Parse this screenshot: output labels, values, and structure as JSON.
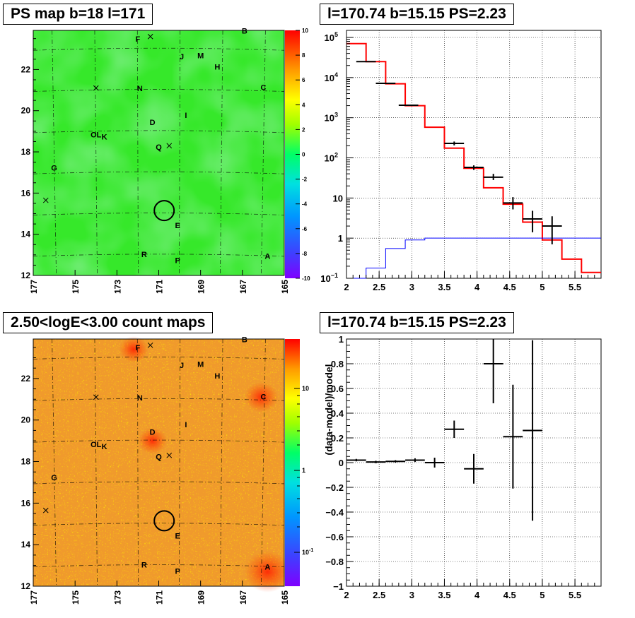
{
  "titles": {
    "tl": "PS map b=18 l=171",
    "tr": "l=170.74 b=15.15 PS=2.23",
    "bl": "2.50<logE<3.00 count maps",
    "br": "l=170.74 b=15.15 PS=2.23"
  },
  "chart_data": [
    {
      "type": "heatmap",
      "id": "ps-map",
      "title": "PS map b=18 l=171",
      "xlim": [
        177,
        165
      ],
      "ylim": [
        12,
        23.9
      ],
      "x_ticks": [
        "177",
        "175",
        "173",
        "171",
        "169",
        "167",
        "165"
      ],
      "y_ticks": [
        "12",
        "14",
        "16",
        "18",
        "20",
        "22"
      ],
      "colorbar": {
        "range": [
          -10,
          10
        ],
        "ticks": [
          "10",
          "8",
          "6",
          "4",
          "2",
          "0",
          "-2",
          "-4",
          "-6",
          "-8",
          "-10"
        ]
      },
      "grid": true,
      "labels": [
        {
          "text": "F",
          "l": 172.0,
          "b": 23.35
        },
        {
          "text": "B",
          "l": 166.9,
          "b": 23.75
        },
        {
          "text": "J",
          "l": 169.9,
          "b": 22.5
        },
        {
          "text": "M",
          "l": 169.0,
          "b": 22.55
        },
        {
          "text": "H",
          "l": 168.2,
          "b": 22.0
        },
        {
          "text": "C",
          "l": 166.0,
          "b": 21.0
        },
        {
          "text": "N",
          "l": 171.9,
          "b": 20.95
        },
        {
          "text": "I",
          "l": 169.7,
          "b": 19.65
        },
        {
          "text": "D",
          "l": 171.3,
          "b": 19.3
        },
        {
          "text": "OL",
          "l": 174.0,
          "b": 18.7
        },
        {
          "text": "K",
          "l": 173.6,
          "b": 18.6
        },
        {
          "text": "Q",
          "l": 171.0,
          "b": 18.1
        },
        {
          "text": "G",
          "l": 176.0,
          "b": 17.1
        },
        {
          "text": "E",
          "l": 170.1,
          "b": 14.3
        },
        {
          "text": "R",
          "l": 171.7,
          "b": 12.9
        },
        {
          "text": "P",
          "l": 170.1,
          "b": 12.6
        },
        {
          "text": "A",
          "l": 165.8,
          "b": 12.8
        }
      ],
      "crosses": [
        {
          "l": 171.4,
          "b": 23.6
        },
        {
          "l": 174.0,
          "b": 21.1
        },
        {
          "l": 170.5,
          "b": 18.3
        },
        {
          "l": 176.4,
          "b": 15.65
        }
      ],
      "circle": {
        "l": 170.74,
        "b": 15.15,
        "r_deg": 0.45
      }
    },
    {
      "type": "line",
      "id": "spectrum",
      "title": "l=170.74 b=15.15 PS=2.23",
      "xlim": [
        2,
        5.9
      ],
      "ylim": [
        0.1,
        150000
      ],
      "yscale": "log",
      "x_ticks": [
        "2",
        "2.5",
        "3",
        "3.5",
        "4",
        "4.5",
        "5",
        "5.5"
      ],
      "y_ticks": [
        {
          "v": 100000,
          "base": "10",
          "exp": "5"
        },
        {
          "v": 10000,
          "base": "10",
          "exp": "4"
        },
        {
          "v": 1000,
          "base": "10",
          "exp": "3"
        },
        {
          "v": 100,
          "base": "10",
          "exp": "2"
        },
        {
          "v": 10,
          "base": "10",
          "exp": ""
        },
        {
          "v": 1,
          "base": "1",
          "exp": ""
        },
        {
          "v": 0.1,
          "base": "10",
          "exp": "−1"
        }
      ],
      "grid": true,
      "series": [
        {
          "color": "#ff0000",
          "style": "step",
          "edges": [
            2.0,
            2.3,
            2.6,
            2.9,
            3.2,
            3.5,
            3.8,
            4.1,
            4.4,
            4.7,
            5.0,
            5.3,
            5.6,
            5.9
          ],
          "values": [
            70000,
            25000,
            7000,
            2000,
            580,
            175,
            55,
            18,
            7,
            2.5,
            0.9,
            0.3,
            0.14
          ]
        },
        {
          "color": "#0000ff",
          "style": "step",
          "edges": [
            2.0,
            2.3,
            2.6,
            2.9,
            3.2,
            5.9
          ],
          "values": [
            0.1,
            0.18,
            0.55,
            0.9,
            1.0
          ]
        }
      ],
      "points": [
        {
          "x": 2.3,
          "y": 25000,
          "xerr": 0.15
        },
        {
          "x": 2.6,
          "y": 7200,
          "xerr": 0.15
        },
        {
          "x": 2.95,
          "y": 2050,
          "xerr": 0.15
        },
        {
          "x": 3.65,
          "y": 230,
          "xerr": 0.15,
          "ylo": 205,
          "yhi": 255
        },
        {
          "x": 3.95,
          "y": 58,
          "xerr": 0.15,
          "ylo": 50,
          "yhi": 65
        },
        {
          "x": 4.25,
          "y": 33,
          "xerr": 0.15,
          "ylo": 28,
          "yhi": 40
        },
        {
          "x": 4.55,
          "y": 7.5,
          "xerr": 0.15,
          "ylo": 5.2,
          "yhi": 10.5
        },
        {
          "x": 4.85,
          "y": 3,
          "xerr": 0.15,
          "ylo": 1.4,
          "yhi": 4.8
        },
        {
          "x": 5.15,
          "y": 2,
          "xerr": 0.15,
          "ylo": 0.7,
          "yhi": 3.5
        }
      ]
    },
    {
      "type": "heatmap",
      "id": "count-map",
      "title": "2.50<logE<3.00 count maps",
      "xlim": [
        177,
        165
      ],
      "ylim": [
        12,
        23.9
      ],
      "x_ticks": [
        "177",
        "175",
        "173",
        "171",
        "169",
        "167",
        "165"
      ],
      "y_ticks": [
        "12",
        "14",
        "16",
        "18",
        "20",
        "22"
      ],
      "colorbar": {
        "scale": "log",
        "ticks": [
          {
            "text": "10",
            "exp": ""
          },
          {
            "text": "1",
            "exp": ""
          },
          {
            "text": "10",
            "exp": "-1"
          }
        ]
      },
      "grid": true,
      "hotspots": [
        {
          "l": 165.8,
          "b": 12.7,
          "r_deg": 1.1
        },
        {
          "l": 166.1,
          "b": 21.1,
          "r_deg": 0.8
        },
        {
          "l": 171.3,
          "b": 19.0,
          "r_deg": 0.7
        },
        {
          "l": 172.2,
          "b": 23.4,
          "r_deg": 0.7
        }
      ]
    },
    {
      "type": "scatter",
      "id": "residual",
      "title": "l=170.74 b=15.15 PS=2.23",
      "ylabel": "(data-model)/model",
      "xlim": [
        2,
        5.9
      ],
      "ylim": [
        -1,
        1
      ],
      "x_ticks": [
        "2",
        "2.5",
        "3",
        "3.5",
        "4",
        "4.5",
        "5",
        "5.5"
      ],
      "y_ticks": [
        "1",
        "0.8",
        "0.6",
        "0.4",
        "0.2",
        "0",
        "−0.2",
        "−0.4",
        "−0.6",
        "−0.8",
        "−1"
      ],
      "grid": true,
      "points": [
        {
          "x": 2.15,
          "y": 0.02,
          "xerr": 0.15,
          "yerr": 0.01
        },
        {
          "x": 2.45,
          "y": 0.005,
          "xerr": 0.15,
          "yerr": 0.01
        },
        {
          "x": 2.75,
          "y": 0.01,
          "xerr": 0.15,
          "yerr": 0.01
        },
        {
          "x": 3.05,
          "y": 0.02,
          "xerr": 0.15,
          "yerr": 0.015
        },
        {
          "x": 3.35,
          "y": 0.0,
          "xerr": 0.15,
          "yerr": 0.04
        },
        {
          "x": 3.65,
          "y": 0.27,
          "xerr": 0.15,
          "yerr": 0.07
        },
        {
          "x": 3.95,
          "y": -0.05,
          "xerr": 0.15,
          "yerr": 0.12
        },
        {
          "x": 4.25,
          "y": 0.8,
          "xerr": 0.15,
          "yerr": 0.32
        },
        {
          "x": 4.55,
          "y": 0.21,
          "xerr": 0.15,
          "yerr": 0.42
        },
        {
          "x": 4.85,
          "y": 0.26,
          "xerr": 0.15,
          "yerr": 0.73
        }
      ]
    }
  ]
}
